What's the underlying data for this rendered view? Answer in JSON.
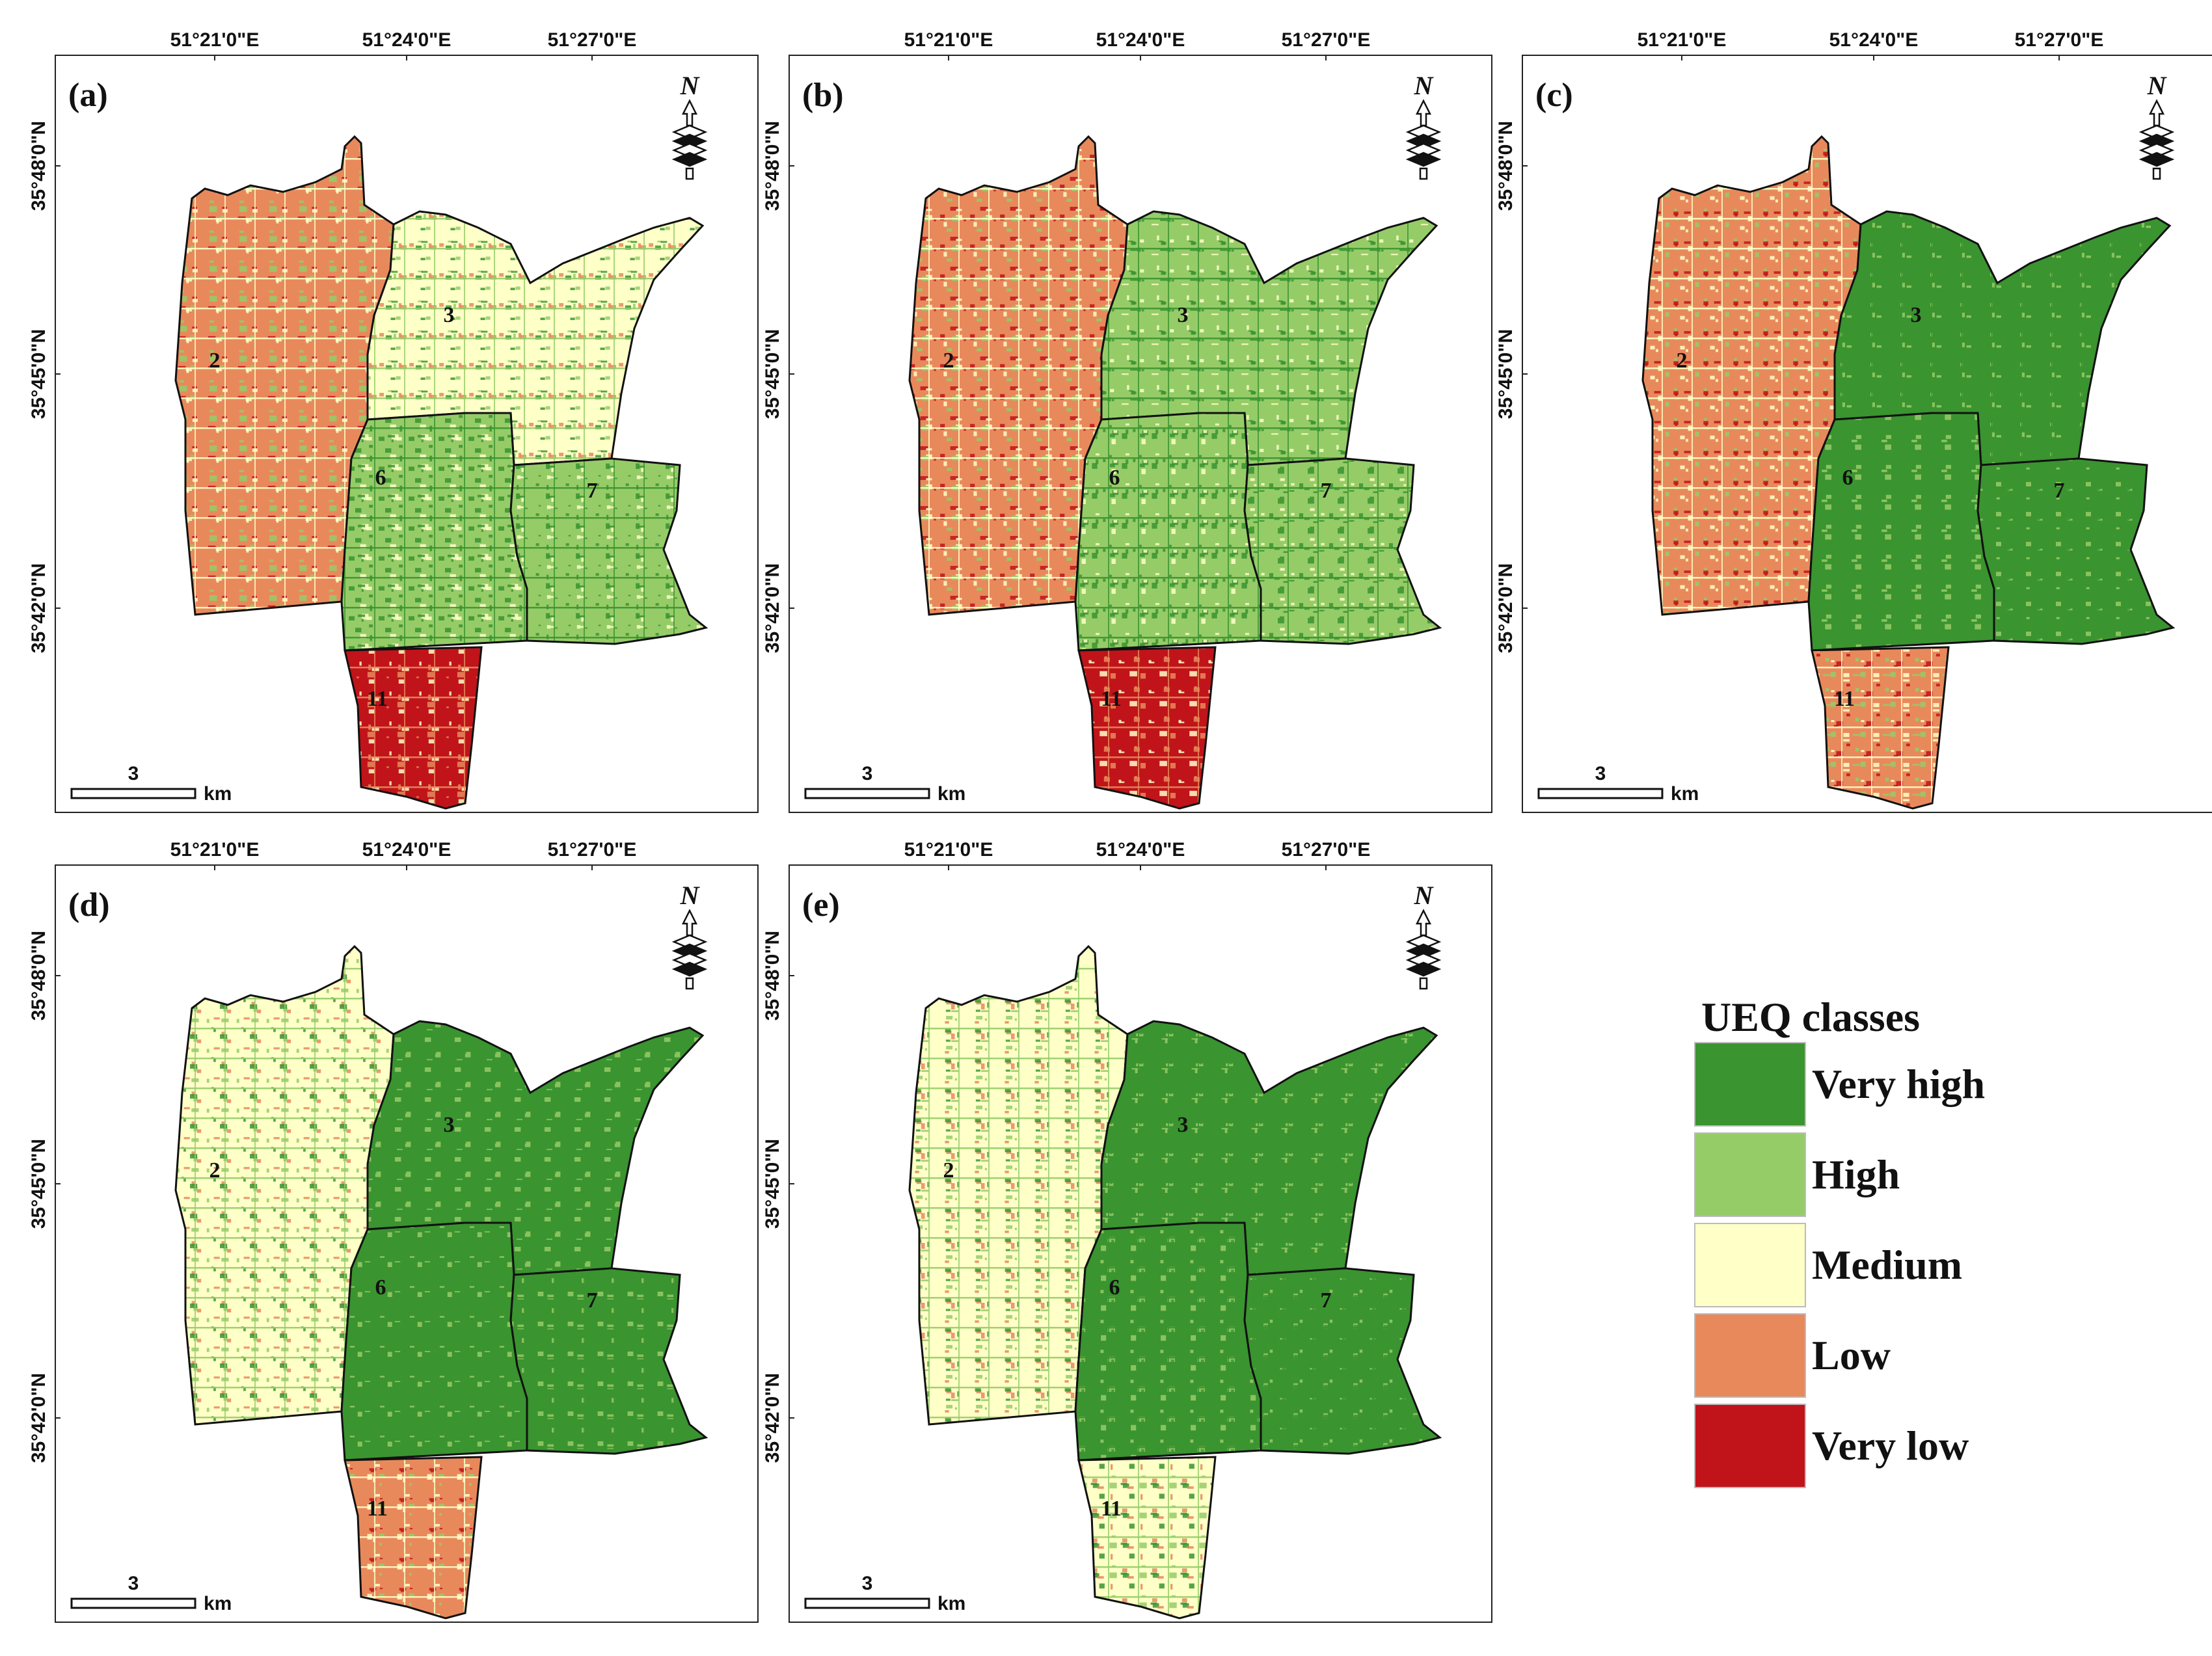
{
  "figure": {
    "axes": {
      "x_ticks": [
        "51°21'0\"E",
        "51°24'0\"E",
        "51°27'0\"E"
      ],
      "y_ticks": [
        "35°48'0\"N",
        "35°45'0\"N",
        "35°42'0\"N"
      ]
    },
    "scale_bar": {
      "value": "3",
      "unit": "km"
    },
    "north_arrow": {
      "label": "N"
    },
    "zones": [
      "2",
      "3",
      "6",
      "7",
      "11"
    ],
    "panels": [
      {
        "id": "(a)",
        "zone_quality": {
          "2": "low",
          "3": "medium",
          "6": "high",
          "7": "high",
          "11": "very_low"
        }
      },
      {
        "id": "(b)",
        "zone_quality": {
          "2": "low",
          "3": "high",
          "6": "high",
          "7": "high",
          "11": "very_low"
        }
      },
      {
        "id": "(c)",
        "zone_quality": {
          "2": "low",
          "3": "very_high",
          "6": "very_high",
          "7": "very_high",
          "11": "low"
        }
      },
      {
        "id": "(d)",
        "zone_quality": {
          "2": "medium",
          "3": "very_high",
          "6": "very_high",
          "7": "very_high",
          "11": "low"
        }
      },
      {
        "id": "(e)",
        "zone_quality": {
          "2": "medium",
          "3": "very_high",
          "6": "very_high",
          "7": "very_high",
          "11": "medium"
        }
      }
    ]
  },
  "legend": {
    "title": "UEQ classes",
    "items": [
      {
        "key": "very_high",
        "label": "Very high",
        "color": "#3a9430"
      },
      {
        "key": "high",
        "label": "High",
        "color": "#96cc68"
      },
      {
        "key": "medium",
        "label": "Medium",
        "color": "#ffffc8"
      },
      {
        "key": "low",
        "label": "Low",
        "color": "#e8895c"
      },
      {
        "key": "very_low",
        "label": "Very low",
        "color": "#c0141a"
      }
    ]
  }
}
